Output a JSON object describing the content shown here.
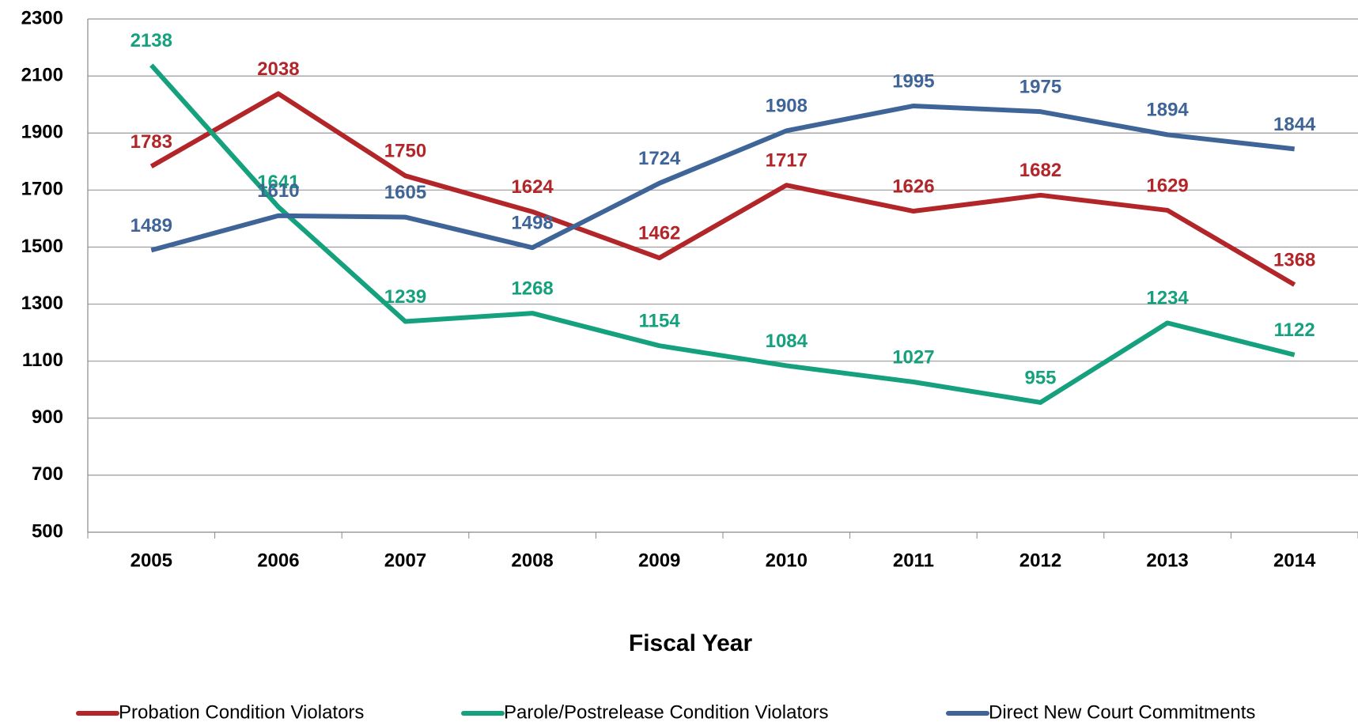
{
  "chart_data": {
    "type": "line",
    "x_label": "Fiscal Year",
    "categories": [
      "2005",
      "2006",
      "2007",
      "2008",
      "2009",
      "2010",
      "2011",
      "2012",
      "2013",
      "2014"
    ],
    "series": [
      {
        "name": "Probation Condition Violators",
        "color": "#b2262a",
        "values": [
          1783,
          2038,
          1750,
          1624,
          1462,
          1717,
          1626,
          1682,
          1629,
          1368
        ]
      },
      {
        "name": "Parole/Postrelease Condition Violators",
        "color": "#16a17e",
        "values": [
          2138,
          1641,
          1239,
          1268,
          1154,
          1084,
          1027,
          955,
          1234,
          1122
        ]
      },
      {
        "name": "Direct New Court Commitments",
        "color": "#3f6598",
        "values": [
          1489,
          1610,
          1605,
          1498,
          1724,
          1908,
          1995,
          1975,
          1894,
          1844
        ]
      }
    ],
    "ylim": [
      500,
      2300
    ],
    "yticks": [
      500,
      700,
      900,
      1100,
      1300,
      1500,
      1700,
      1900,
      2100,
      2300
    ],
    "grid": true,
    "legend": "bottom"
  }
}
